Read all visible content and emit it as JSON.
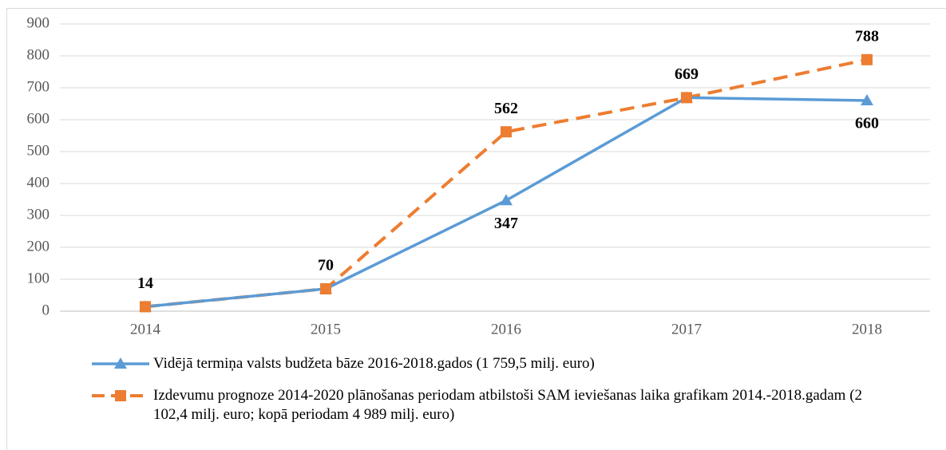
{
  "chart_data": {
    "type": "line",
    "categories": [
      "2014",
      "2015",
      "2016",
      "2017",
      "2018"
    ],
    "series": [
      {
        "name": "Vidējā termiņa valsts budžeta bāze 2016-2018.gados (1 759,5 milj. euro)",
        "color": "#5b9bd5",
        "marker": "triangle",
        "dash": false,
        "values": [
          14,
          70,
          347,
          669,
          660
        ]
      },
      {
        "name": "Izdevumu prognoze 2014-2020 plānošanas periodam atbilstoši SAM ieviešanas laika grafikam 2014.-2018.gadam (2 102,4 milj. euro; kopā periodam 4 989 milj. euro)",
        "color": "#ed7d31",
        "marker": "square",
        "dash": true,
        "values": [
          14,
          70,
          562,
          669,
          788
        ]
      }
    ],
    "ylim": [
      0,
      900
    ],
    "yticks": [
      0,
      100,
      200,
      300,
      400,
      500,
      600,
      700,
      800,
      900
    ],
    "grid": true,
    "legend": "bottom"
  }
}
